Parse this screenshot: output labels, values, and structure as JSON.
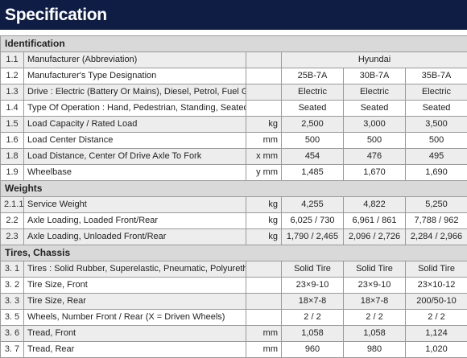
{
  "header": {
    "title": "Specification"
  },
  "table": [
    {
      "type": "section",
      "title": "Identification"
    },
    {
      "num": "1.1",
      "desc": "Manufacturer (Abbreviation)",
      "unit": "",
      "span": "Hyundai"
    },
    {
      "num": "1.2",
      "desc": "Manufacturer's Type Designation",
      "unit": "",
      "values": [
        "25B-7A",
        "30B-7A",
        "35B-7A"
      ]
    },
    {
      "num": "1.3",
      "desc": "Drive : Electric (Battery Or Mains), Diesel, Petrol, Fuel Gas",
      "unit": "",
      "values": [
        "Electric",
        "Electric",
        "Electric"
      ]
    },
    {
      "num": "1.4",
      "desc": "Type Of Operation : Hand, Pedestrian, Standing, Seated, Order-Picker",
      "unit": "",
      "values": [
        "Seated",
        "Seated",
        "Seated"
      ]
    },
    {
      "num": "1.5",
      "desc": "Load Capacity / Rated Load",
      "unit": "kg",
      "values": [
        "2,500",
        "3,000",
        "3,500"
      ]
    },
    {
      "num": "1.6",
      "desc": "Load Center Distance",
      "unit": "mm",
      "values": [
        "500",
        "500",
        "500"
      ]
    },
    {
      "num": "1.8",
      "desc": "Load Distance, Center Of Drive Axle To Fork",
      "unit": "x mm",
      "values": [
        "454",
        "476",
        "495"
      ]
    },
    {
      "num": "1.9",
      "desc": "Wheelbase",
      "unit": "y mm",
      "values": [
        "1,485",
        "1,670",
        "1,690"
      ]
    },
    {
      "type": "section",
      "title": "Weights"
    },
    {
      "num": "2.1.1",
      "desc": "Service Weight",
      "unit": "kg",
      "values": [
        "4,255",
        "4,822",
        "5,250"
      ]
    },
    {
      "num": "2.2",
      "desc": "Axle Loading, Loaded Front/Rear",
      "unit": "kg",
      "values": [
        "6,025 / 730",
        "6,961 / 861",
        "7,788 / 962"
      ]
    },
    {
      "num": "2.3",
      "desc": "Axle Loading, Unloaded Front/Rear",
      "unit": "kg",
      "values": [
        "1,790 / 2,465",
        "2,096 / 2,726",
        "2,284 / 2,966"
      ]
    },
    {
      "type": "section",
      "title": "Tires, Chassis"
    },
    {
      "num": "3. 1",
      "desc": "Tires : Solid Rubber, Superelastic, Pneumatic, Polyurethane",
      "unit": "",
      "values": [
        "Solid Tire",
        "Solid Tire",
        "Solid Tire"
      ]
    },
    {
      "num": "3. 2",
      "desc": "Tire Size, Front",
      "unit": "",
      "values": [
        "23×9-10",
        "23×9-10",
        "23×10-12"
      ]
    },
    {
      "num": "3. 3",
      "desc": "Tire Size, Rear",
      "unit": "",
      "values": [
        "18×7-8",
        "18×7-8",
        "200/50-10"
      ]
    },
    {
      "num": "3. 5",
      "desc": "Wheels, Number Front / Rear (X = Driven Wheels)",
      "unit": "",
      "values": [
        "2 / 2",
        "2 / 2",
        "2 / 2"
      ]
    },
    {
      "num": "3. 6",
      "desc": "Tread, Front",
      "unit": "mm",
      "values": [
        "1,058",
        "1,058",
        "1,124"
      ]
    },
    {
      "num": "3. 7",
      "desc": "Tread, Rear",
      "unit": "mm",
      "values": [
        "960",
        "980",
        "1,020"
      ]
    }
  ]
}
